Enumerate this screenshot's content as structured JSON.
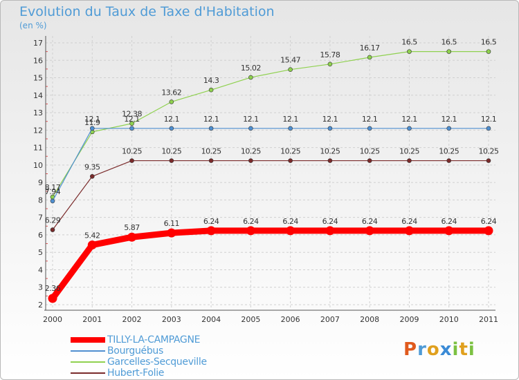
{
  "title": "Evolution du Taux de Taxe d'Habitation",
  "subtitle": "(en %)",
  "logo": "Proxiti",
  "colors": {
    "title": "#4f9bd6",
    "axis_text": "#333333",
    "grid": "#cccccc"
  },
  "chart_data": {
    "type": "line",
    "x": [
      2000,
      2001,
      2002,
      2003,
      2004,
      2005,
      2006,
      2007,
      2008,
      2009,
      2010,
      2011
    ],
    "x_tick_labels": [
      "2000",
      "2001",
      "2002",
      "2003",
      "2004",
      "2005",
      "2006",
      "2007",
      "2008",
      "2009",
      "2010",
      "2011"
    ],
    "ylim": [
      2,
      17
    ],
    "y_ticks": [
      2,
      3,
      4,
      5,
      6,
      7,
      8,
      9,
      10,
      11,
      12,
      13,
      14,
      15,
      16,
      17
    ],
    "y_tick_labels": [
      "2",
      "3",
      "4",
      "5",
      "6",
      "7",
      "8",
      "9",
      "10",
      "11",
      "12",
      "13",
      "14",
      "15",
      "16",
      "17"
    ],
    "grid": true,
    "legend_position": "bottom-left",
    "series": [
      {
        "name": "TILLY-LA-CAMPAGNE",
        "color": "#ff0000",
        "values": [
          2.36,
          5.42,
          5.87,
          6.11,
          6.24,
          6.24,
          6.24,
          6.24,
          6.24,
          6.24,
          6.24,
          6.24
        ],
        "labels": [
          "2.36",
          "5.42",
          "5.87",
          "6.11",
          "6.24",
          "6.24",
          "6.24",
          "6.24",
          "6.24",
          "6.24",
          "6.24",
          "6.24"
        ]
      },
      {
        "name": "Bourguébus",
        "color": "#4f8fd0",
        "values": [
          7.94,
          12.1,
          12.1,
          12.1,
          12.1,
          12.1,
          12.1,
          12.1,
          12.1,
          12.1,
          12.1,
          12.1
        ],
        "labels": [
          "7.94",
          "12.1",
          "12.1",
          "12.1",
          "12.1",
          "12.1",
          "12.1",
          "12.1",
          "12.1",
          "12.1",
          "12.1",
          "12.1"
        ]
      },
      {
        "name": "Garcelles-Secqueville",
        "color": "#8fd14f",
        "values": [
          8.17,
          11.9,
          12.38,
          13.62,
          14.3,
          15.02,
          15.47,
          15.78,
          16.17,
          16.5,
          16.5,
          16.5
        ],
        "labels": [
          "8.17",
          "11.9",
          "12.38",
          "13.62",
          "14.3",
          "15.02",
          "15.47",
          "15.78",
          "16.17",
          "16.5",
          "16.5",
          "16.5"
        ]
      },
      {
        "name": "Hubert-Folie",
        "color": "#7a2a2a",
        "values": [
          6.29,
          9.35,
          10.25,
          10.25,
          10.25,
          10.25,
          10.25,
          10.25,
          10.25,
          10.25,
          10.25,
          10.25
        ],
        "labels": [
          "6.29",
          "9.35",
          "10.25",
          "10.25",
          "10.25",
          "10.25",
          "10.25",
          "10.25",
          "10.25",
          "10.25",
          "10.25",
          "10.25"
        ]
      }
    ]
  }
}
